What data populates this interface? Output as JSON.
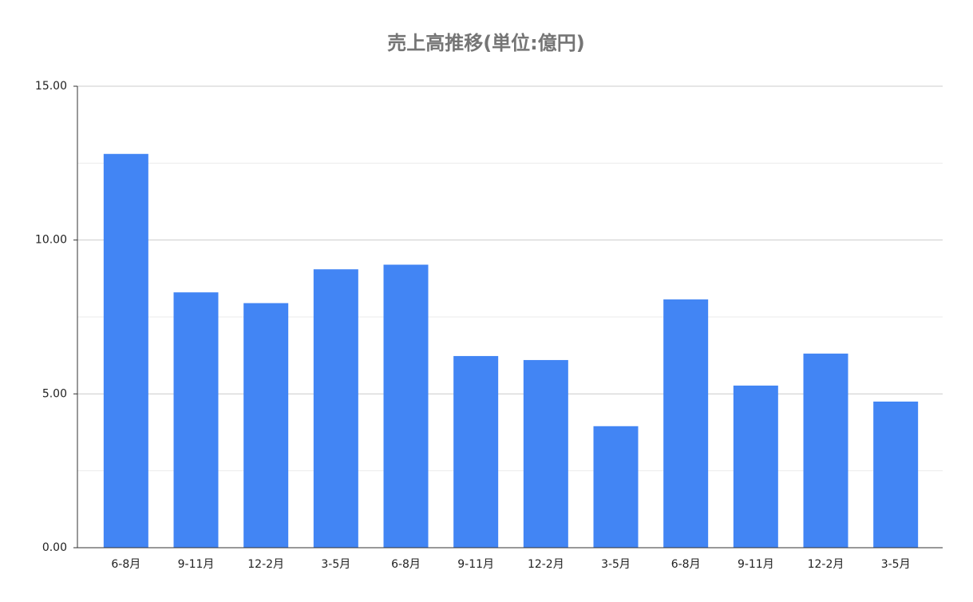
{
  "chart_data": {
    "type": "bar",
    "title": "売上高推移(単位:億円)",
    "categories": [
      "6-8月",
      "9-11月",
      "12-2月",
      "3-5月",
      "6-8月",
      "9-11月",
      "12-2月",
      "3-5月",
      "6-8月",
      "9-11月",
      "12-2月",
      "3-5月"
    ],
    "values": [
      12.8,
      8.3,
      7.95,
      9.05,
      9.2,
      6.23,
      6.1,
      3.95,
      8.07,
      5.27,
      6.31,
      4.75
    ],
    "color": "#4285f4",
    "ylim": [
      0,
      15
    ],
    "yticks": [
      {
        "value": 0,
        "label": "0.00"
      },
      {
        "value": 5,
        "label": "5.00"
      },
      {
        "value": 10,
        "label": "10.00"
      },
      {
        "value": 15,
        "label": "15.00"
      }
    ],
    "minor_yticks": [
      2.5,
      7.5,
      12.5
    ],
    "grid": true
  }
}
